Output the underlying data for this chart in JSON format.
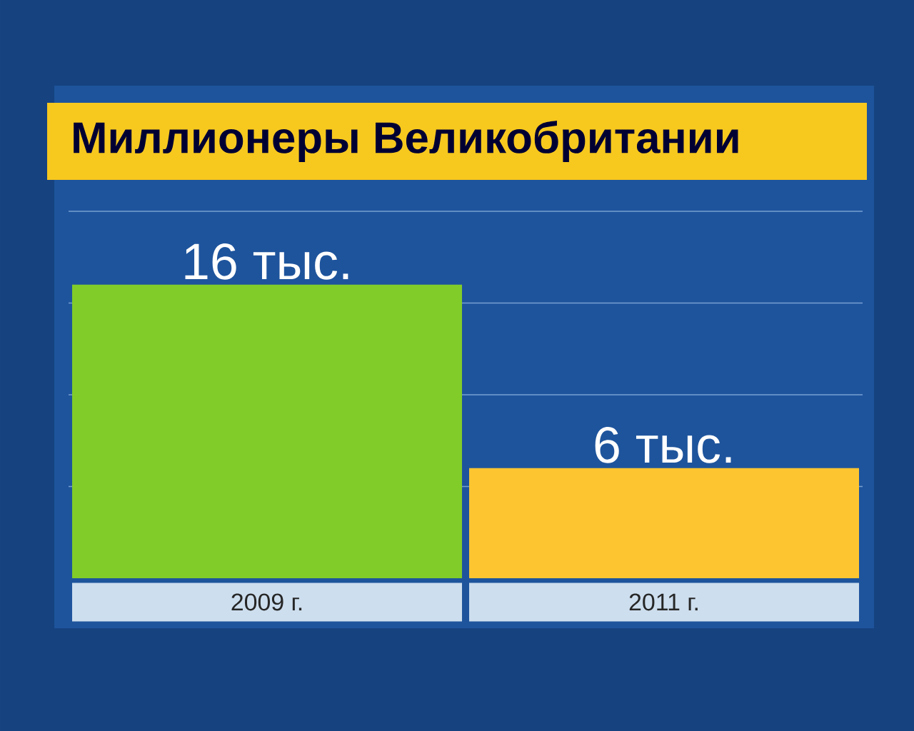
{
  "chart_data": {
    "type": "bar",
    "title": "Миллионеры Великобритании",
    "categories": [
      "2009 г.",
      "2011 г."
    ],
    "values": [
      16,
      6
    ],
    "colors": [
      "#82cc2a",
      "#fdc631"
    ],
    "value_labels": [
      "16 тыс.",
      "6 тыс."
    ],
    "ylim": [
      0,
      20
    ],
    "yticks": [
      {
        "value": 5,
        "label": null
      },
      {
        "value": 10,
        "label": null
      },
      {
        "value": 15,
        "label": null
      },
      {
        "value": 20,
        "label": null
      }
    ],
    "grid": "y",
    "tick_labels": "x"
  }
}
